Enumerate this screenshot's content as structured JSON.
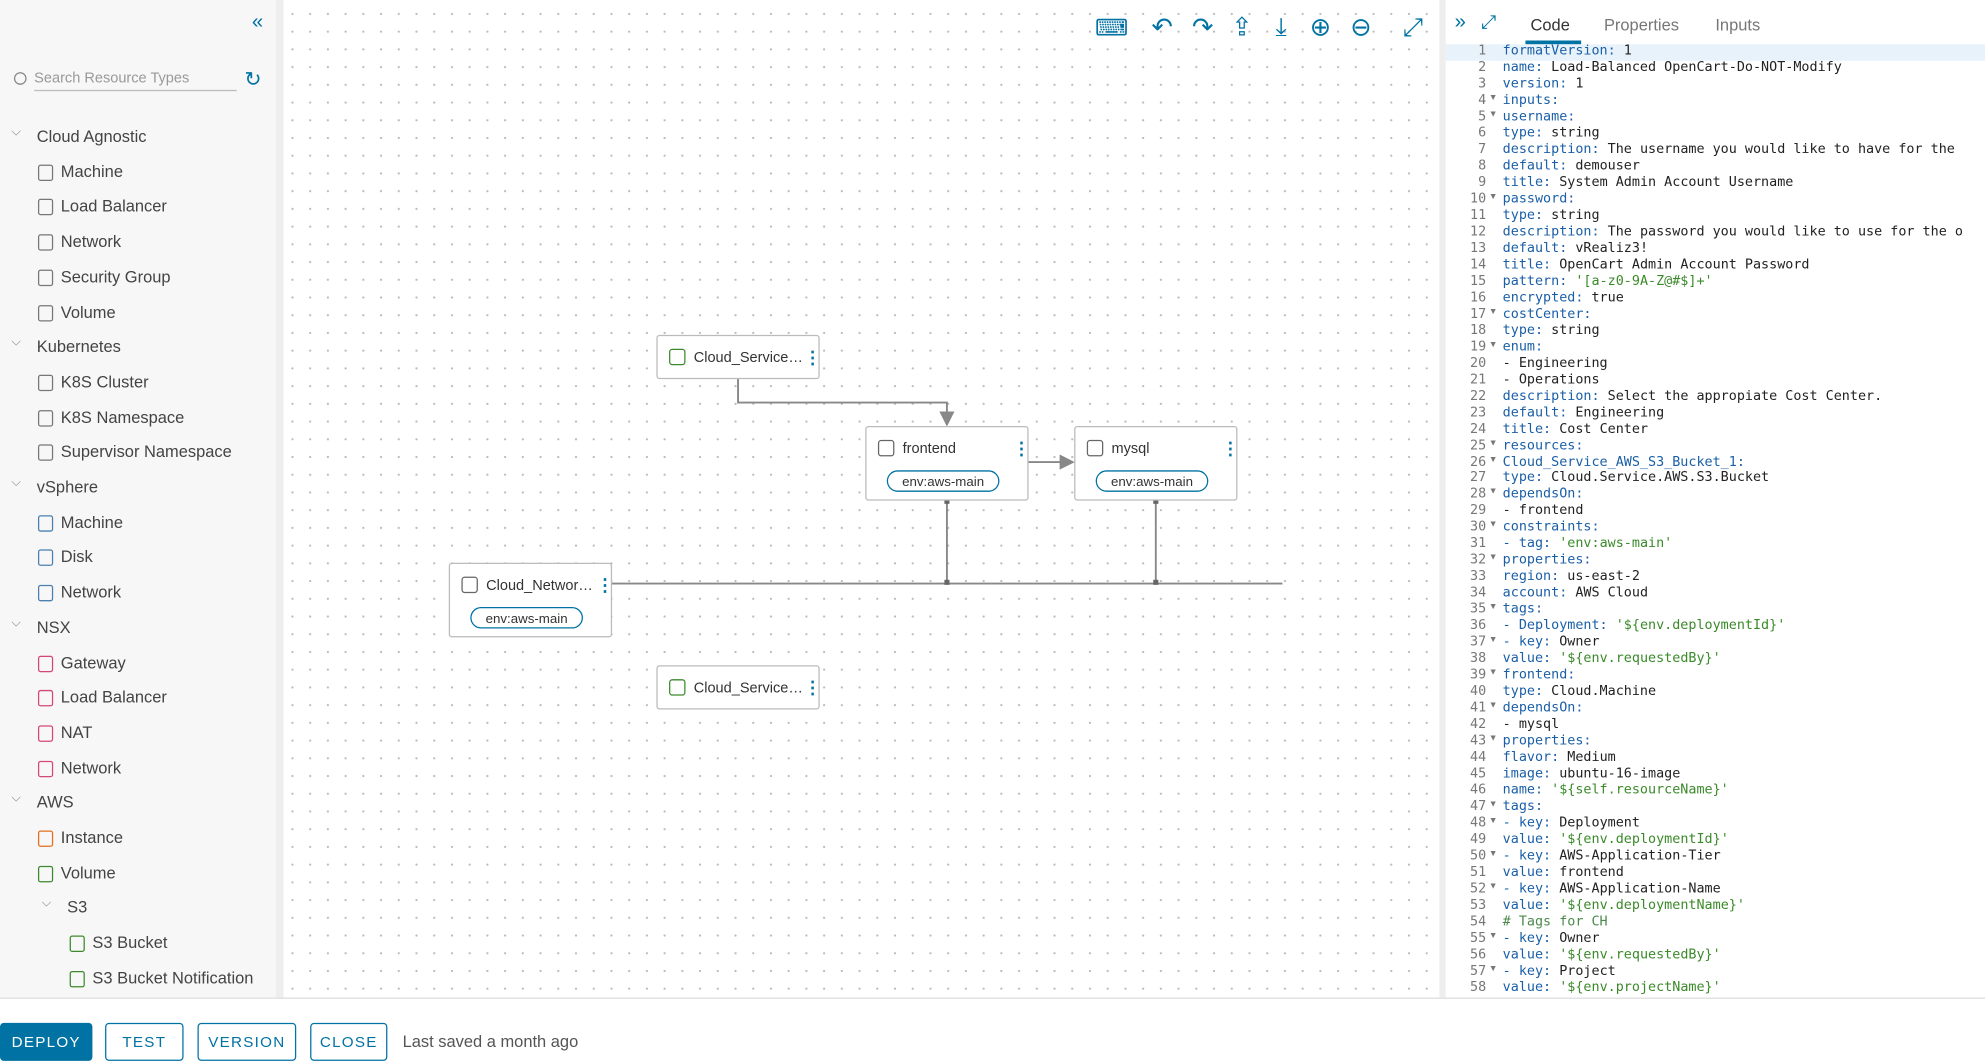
{
  "sidebar": {
    "search_placeholder": "Search Resource Types",
    "groups": [
      {
        "label": "Cloud Agnostic",
        "items": [
          "Machine",
          "Load Balancer",
          "Network",
          "Security Group",
          "Volume"
        ]
      },
      {
        "label": "Kubernetes",
        "items": [
          "K8S Cluster",
          "K8S Namespace",
          "Supervisor Namespace"
        ]
      },
      {
        "label": "vSphere",
        "items": [
          "Machine",
          "Disk",
          "Network"
        ]
      },
      {
        "label": "NSX",
        "items": [
          "Gateway",
          "Load Balancer",
          "NAT",
          "Network"
        ]
      },
      {
        "label": "AWS",
        "items": [
          "Instance",
          "Volume"
        ],
        "subgroup": {
          "label": "S3",
          "items": [
            "S3 Bucket",
            "S3 Bucket Notification"
          ]
        }
      }
    ]
  },
  "canvas": {
    "nodes": [
      {
        "label": "Cloud_Service…"
      },
      {
        "label": "frontend",
        "tag": "env:aws-main"
      },
      {
        "label": "mysql",
        "tag": "env:aws-main"
      },
      {
        "label": "Cloud_Networ…",
        "tag": "env:aws-main"
      },
      {
        "label": "Cloud_Service…"
      }
    ]
  },
  "editor": {
    "tabs": [
      "Code",
      "Properties",
      "Inputs"
    ],
    "line_numbers": [
      1,
      2,
      3,
      4,
      5,
      6,
      7,
      8,
      9,
      10,
      11,
      12,
      13,
      14,
      15,
      16,
      17,
      18,
      19,
      20,
      21,
      22,
      23,
      24,
      25,
      26,
      27,
      28,
      29,
      30,
      31,
      32,
      33,
      34,
      35,
      36,
      37,
      38,
      39,
      40,
      41,
      42,
      43,
      44,
      45,
      46,
      47,
      48,
      49,
      50,
      51,
      52,
      53,
      54,
      55,
      56,
      57,
      58
    ],
    "lines": [
      [
        "formatVersion:",
        " 1"
      ],
      [
        "name:",
        " Load-Balanced OpenCart-Do-NOT-Modify"
      ],
      [
        "version:",
        " 1"
      ],
      [
        "inputs:"
      ],
      [
        "  username:"
      ],
      [
        "    type:",
        " string"
      ],
      [
        "    description:",
        " The username you would like to have for the"
      ],
      [
        "    default:",
        " demouser"
      ],
      [
        "    title:",
        " System Admin Account Username"
      ],
      [
        "  password:"
      ],
      [
        "    type:",
        " string"
      ],
      [
        "    description:",
        " The password you would like to use for the o"
      ],
      [
        "    default:",
        " vRealiz3!"
      ],
      [
        "    title:",
        " OpenCart Admin Account Password"
      ],
      [
        "    pattern:",
        " '[a-z0-9A-Z@#$]+'"
      ],
      [
        "    encrypted:",
        " true"
      ],
      [
        "  costCenter:"
      ],
      [
        "    type:",
        " string"
      ],
      [
        "    enum:"
      ],
      [
        "      - Engineering"
      ],
      [
        "      - Operations"
      ],
      [
        "    description:",
        " Select the appropiate Cost Center."
      ],
      [
        "    default:",
        " Engineering"
      ],
      [
        "    title:",
        " Cost Center"
      ],
      [
        "resources:"
      ],
      [
        "  Cloud_Service_AWS_S3_Bucket_1:"
      ],
      [
        "    type:",
        " Cloud.Service.AWS.S3.Bucket"
      ],
      [
        "    dependsOn:"
      ],
      [
        "      - frontend"
      ],
      [
        "    constraints:"
      ],
      [
        "      - tag:",
        " 'env:aws-main'"
      ],
      [
        "    properties:"
      ],
      [
        "      region:",
        " us-east-2"
      ],
      [
        "      account:",
        " AWS Cloud"
      ],
      [
        "      tags:"
      ],
      [
        "        - Deployment:",
        " '${env.deploymentId}'"
      ],
      [
        "        - key:",
        " Owner"
      ],
      [
        "          value:",
        " '${env.requestedBy}'"
      ],
      [
        "  frontend:"
      ],
      [
        "    type:",
        " Cloud.Machine"
      ],
      [
        "    dependsOn:"
      ],
      [
        "      - mysql"
      ],
      [
        "    properties:"
      ],
      [
        "      flavor:",
        " Medium"
      ],
      [
        "      image:",
        " ubuntu-16-image"
      ],
      [
        "      name:",
        " '${self.resourceName}'"
      ],
      [
        "      tags:"
      ],
      [
        "        - key:",
        " Deployment"
      ],
      [
        "          value:",
        " '${env.deploymentId}'"
      ],
      [
        "        - key:",
        " AWS-Application-Tier"
      ],
      [
        "          value:",
        " frontend"
      ],
      [
        "        - key:",
        " AWS-Application-Name"
      ],
      [
        "          value:",
        " '${env.deploymentName}'"
      ],
      [
        "        # Tags for CH"
      ],
      [
        "        - key:",
        " Owner"
      ],
      [
        "          value:",
        " '${env.requestedBy}'"
      ],
      [
        "        - key:",
        " Project"
      ],
      [
        "          value:",
        " '${env.projectName}'"
      ]
    ]
  },
  "footer": {
    "buttons": [
      "DEPLOY",
      "TEST",
      "VERSION",
      "CLOSE"
    ],
    "status": "Last saved a month ago"
  }
}
